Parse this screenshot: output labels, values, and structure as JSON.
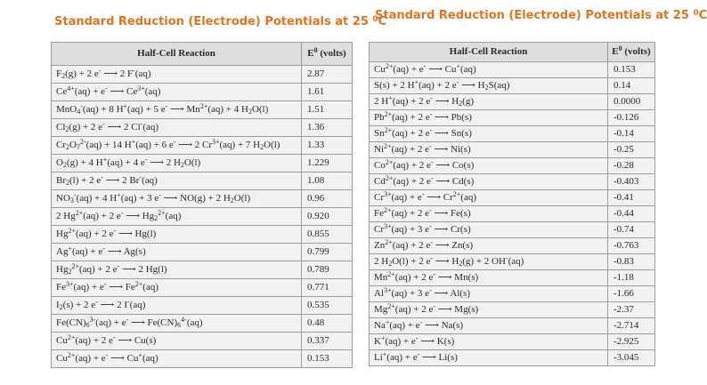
{
  "colors": {
    "title_orange": "#e2741d",
    "table_header_bg": "#dedede",
    "table_row_bg": "#f1f1f1",
    "table_border": "#9c9c9c",
    "text": "#2b2b2b",
    "page_bg": "#ffffff"
  },
  "left_table": {
    "title_html": "Standard Reduction (Electrode) Potentials at 25 <sup>0</sup>C",
    "header": {
      "reaction": "Half-Cell Reaction",
      "potential_html": "E<sup>0</sup> (volts)"
    },
    "rows": [
      {
        "reaction_html": "F<sub>2</sub>(g) + 2 e<sup>-</sup> &#10230; 2 F<sup>-</sup>(aq)",
        "potential": "2.87"
      },
      {
        "reaction_html": "Ce<sup>4+</sup>(aq) + e<sup>-</sup> &#10230; Ce<sup>3+</sup>(aq)",
        "potential": "1.61"
      },
      {
        "reaction_html": "MnO<sub>4</sub><sup>-</sup>(aq) + 8 H<sup>+</sup>(aq) + 5 e<sup>-</sup> &#10230; Mn<sup>2+</sup>(aq) + 4 H<sub>2</sub>O(l)",
        "potential": "1.51"
      },
      {
        "reaction_html": "Cl<sub>2</sub>(g) + 2 e<sup>-</sup> &#10230; 2 Cl<sup>-</sup>(aq)",
        "potential": "1.36"
      },
      {
        "reaction_html": "Cr<sub>2</sub>O<sub>7</sub><sup>2-</sup>(aq) + 14 H<sup>+</sup>(aq) + 6 e<sup>-</sup> &#10230; 2 Cr<sup>3+</sup>(aq) + 7 H<sub>2</sub>O(l)",
        "potential": "1.33"
      },
      {
        "reaction_html": "O<sub>2</sub>(g) + 4 H<sup>+</sup>(aq) + 4 e<sup>-</sup> &#10230; 2 H<sub>2</sub>O(l)",
        "potential": "1.229"
      },
      {
        "reaction_html": "Br<sub>2</sub>(l) + 2 e<sup>-</sup> &#10230; 2 Br<sup>-</sup>(aq)",
        "potential": "1.08"
      },
      {
        "reaction_html": "NO<sub>3</sub><sup>-</sup>(aq) + 4 H<sup>+</sup>(aq) + 3 e<sup>-</sup> &#10230; NO(g) + 2 H<sub>2</sub>O(l)",
        "potential": "0.96"
      },
      {
        "reaction_html": "2 Hg<sup>2+</sup>(aq) + 2 e<sup>-</sup> &#10230; Hg<sub>2</sub><sup>2+</sup>(aq)",
        "potential": "0.920"
      },
      {
        "reaction_html": "Hg<sup>2+</sup>(aq) + 2 e<sup>-</sup> &#10230; Hg(l)",
        "potential": "0.855"
      },
      {
        "reaction_html": "Ag<sup>+</sup>(aq) + e<sup>-</sup> &#10230; Ag(s)",
        "potential": "0.799"
      },
      {
        "reaction_html": "Hg<sub>2</sub><sup>2+</sup>(aq) + 2 e<sup>-</sup> &#10230; 2 Hg(l)",
        "potential": "0.789"
      },
      {
        "reaction_html": "Fe<sup>3+</sup>(aq) + e<sup>-</sup> &#10230; Fe<sup>2+</sup>(aq)",
        "potential": "0.771"
      },
      {
        "reaction_html": "I<sub>2</sub>(s) + 2 e<sup>-</sup> &#10230; 2 I<sup>-</sup>(aq)",
        "potential": "0.535"
      },
      {
        "reaction_html": "Fe(CN)<sub>6</sub><sup>3-</sup>(aq) + e<sup>-</sup> &#10230; Fe(CN)<sub>6</sub><sup>4-</sup>(aq)",
        "potential": "0.48"
      },
      {
        "reaction_html": "Cu<sup>2+</sup>(aq) + 2 e<sup>-</sup> &#10230; Cu(s)",
        "potential": "0.337"
      },
      {
        "reaction_html": "Cu<sup>2+</sup>(aq) + e<sup>-</sup> &#10230; Cu<sup>+</sup>(aq)",
        "potential": "0.153"
      }
    ]
  },
  "right_table": {
    "title_html": "Standard Reduction (Electrode) Potentials at 25 <sup>0</sup>C",
    "header": {
      "reaction": "Half-Cell Reaction",
      "potential_html": "E<sup>0</sup> (volts)"
    },
    "rows": [
      {
        "reaction_html": "Cu<sup>2+</sup>(aq) + e<sup>-</sup> &#10230; Cu<sup>+</sup>(aq)",
        "potential": "0.153"
      },
      {
        "reaction_html": "S(s) + 2 H<sup>+</sup>(aq) + 2 e<sup>-</sup> &#10230; H<sub>2</sub>S(aq)",
        "potential": "0.14"
      },
      {
        "reaction_html": "2 H<sup>+</sup>(aq) + 2 e<sup>-</sup> &#10230; H<sub>2</sub>(g)",
        "potential": "0.0000"
      },
      {
        "reaction_html": "Pb<sup>2+</sup>(aq) + 2 e<sup>-</sup> &#10230; Pb(s)",
        "potential": "-0.126"
      },
      {
        "reaction_html": "Sn<sup>2+</sup>(aq) + 2 e<sup>-</sup> &#10230; Sn(s)",
        "potential": "-0.14"
      },
      {
        "reaction_html": "Ni<sup>2+</sup>(aq) + 2 e<sup>-</sup> &#10230; Ni(s)",
        "potential": "-0.25"
      },
      {
        "reaction_html": "Co<sup>2+</sup>(aq) + 2 e<sup>-</sup> &#10230; Co(s)",
        "potential": "-0.28"
      },
      {
        "reaction_html": "Cd<sup>2+</sup>(aq) + 2 e<sup>-</sup> &#10230; Cd(s)",
        "potential": "-0.403"
      },
      {
        "reaction_html": "Cr<sup>3+</sup>(aq) + e<sup>-</sup> &#10230; Cr<sup>2+</sup>(aq)",
        "potential": "-0.41"
      },
      {
        "reaction_html": "Fe<sup>2+</sup>(aq) + 2 e<sup>-</sup> &#10230; Fe(s)",
        "potential": "-0.44"
      },
      {
        "reaction_html": "Cr<sup>3+</sup>(aq) + 3 e<sup>-</sup> &#10230; Cr(s)",
        "potential": "-0.74"
      },
      {
        "reaction_html": "Zn<sup>2+</sup>(aq) + 2 e<sup>-</sup> &#10230; Zn(s)",
        "potential": "-0.763"
      },
      {
        "reaction_html": "2 H<sub>2</sub>O(l) + 2 e<sup>-</sup> &#10230; H<sub>2</sub>(g) + 2 OH<sup>-</sup>(aq)",
        "potential": "-0.83"
      },
      {
        "reaction_html": "Mn<sup>2+</sup>(aq) + 2 e<sup>-</sup> &#10230; Mn(s)",
        "potential": "-1.18"
      },
      {
        "reaction_html": "Al<sup>3+</sup>(aq) + 3 e<sup>-</sup> &#10230; Al(s)",
        "potential": "-1.66"
      },
      {
        "reaction_html": "Mg<sup>2+</sup>(aq) + 2 e<sup>-</sup> &#10230; Mg(s)",
        "potential": "-2.37"
      },
      {
        "reaction_html": "Na<sup>+</sup>(aq) + e<sup>-</sup> &#10230; Na(s)",
        "potential": "-2.714"
      },
      {
        "reaction_html": "K<sup>+</sup>(aq) + e<sup>-</sup> &#10230; K(s)",
        "potential": "-2.925"
      },
      {
        "reaction_html": "Li<sup>+</sup>(aq) + e<sup>-</sup> &#10230; Li(s)",
        "potential": "-3.045"
      }
    ]
  }
}
